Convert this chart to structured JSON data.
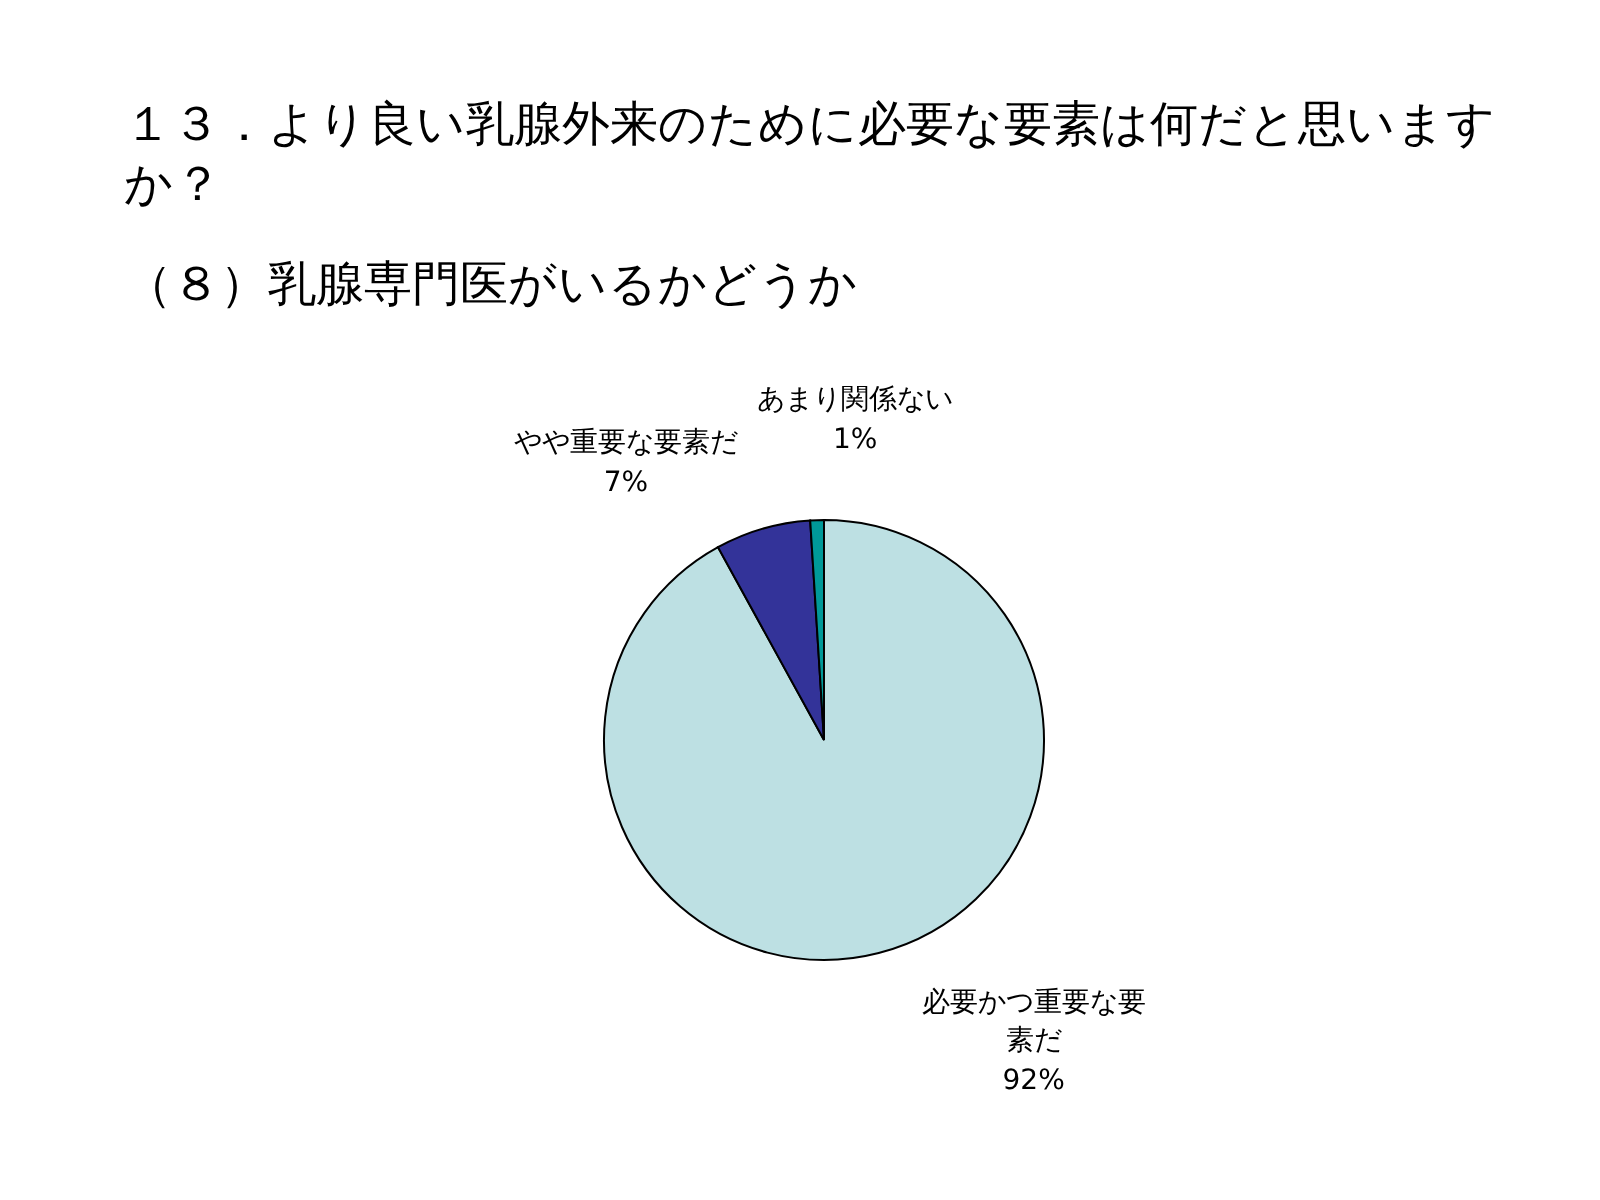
{
  "chart_data": {
    "type": "pie",
    "title": "１３．より良い乳腺外来のために必要な要素は何だと思いますか？",
    "subtitle": "（８）乳腺専門医がいるかどうか",
    "categories": [
      "必要かつ重要な要素だ",
      "やや重要な要素だ",
      "あまり関係ない"
    ],
    "values": [
      92,
      7,
      1
    ],
    "value_labels": [
      "92%",
      "7%",
      "1%"
    ],
    "colors": [
      "#bde0e3",
      "#333399",
      "#009999"
    ]
  }
}
